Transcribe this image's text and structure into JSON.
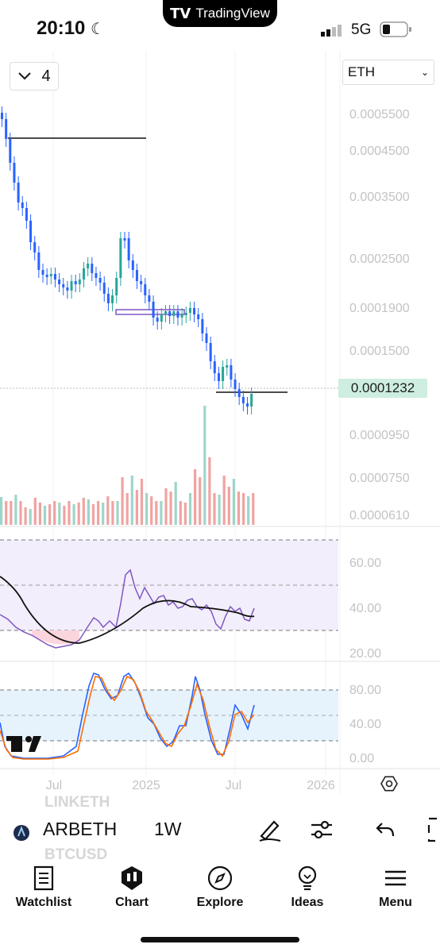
{
  "status_bar": {
    "time": "20:10",
    "network": "5G",
    "app_badge": "TradingView"
  },
  "toolbar_top": {
    "interval_value": "4",
    "symbol_select": "ETH"
  },
  "price_axis": [
    "0.0005500",
    "0.0004500",
    "0.0003500",
    "0.0002500",
    "0.0001900",
    "0.0001500",
    "0.0000950",
    "0.0000750",
    "0.0000610"
  ],
  "current_price": "0.0001232",
  "rsi_axis": [
    "60.00",
    "40.00",
    "20.00"
  ],
  "stoch_axis": [
    "80.00",
    "40.00",
    "0.00"
  ],
  "time_axis": [
    "Jul",
    "2025",
    "Jul",
    "2026"
  ],
  "symbol_bar": {
    "symbol": "ARBETH",
    "timeframe": "1W",
    "above_ghost": "LINKETH",
    "below_ghost": "BTCUSD"
  },
  "nav": [
    {
      "label": "Watchlist",
      "icon": "watchlist-icon"
    },
    {
      "label": "Chart",
      "icon": "chart-icon"
    },
    {
      "label": "Explore",
      "icon": "compass-icon"
    },
    {
      "label": "Ideas",
      "icon": "lightbulb-icon"
    },
    {
      "label": "Menu",
      "icon": "menu-icon"
    }
  ],
  "colors": {
    "up": "#26a69a",
    "down": "#ef5350",
    "rsi": "#7e57c2",
    "stoch_k": "#2962ff",
    "stoch_d": "#ff6d00"
  }
}
